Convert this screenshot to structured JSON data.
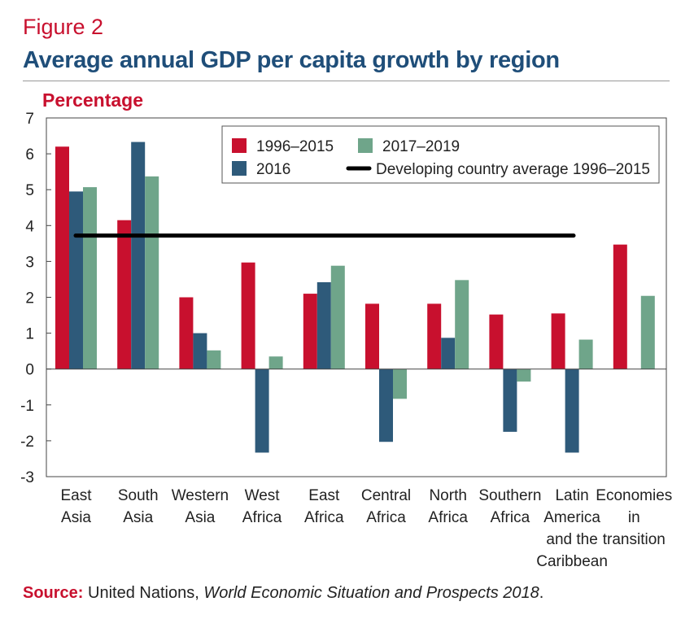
{
  "header": {
    "figure_label": "Figure 2",
    "title": "Average annual GDP per capita growth by region"
  },
  "source": {
    "label": "Source:",
    "text_before": " United Nations, ",
    "title": "World Economic Situation and Prospects 2018",
    "text_after": "."
  },
  "colors": {
    "series_1996_2015": "#c8102e",
    "series_2016": "#2e5a7a",
    "series_2017_2019": "#6fa58a",
    "average_line": "#000000",
    "title": "#1f4e79",
    "accent_red": "#c8102e"
  },
  "chart_data": {
    "type": "bar",
    "title": "Average annual GDP per capita growth by region",
    "ylabel": "Percentage",
    "xlabel": "",
    "ylim": [
      -3,
      7
    ],
    "yticks": [
      "7",
      "6",
      "5",
      "4",
      "3",
      "2",
      "1",
      "0",
      "-1",
      "-2",
      "-3"
    ],
    "grid": false,
    "legend_position": "top-right",
    "categories": [
      [
        "East",
        "Asia"
      ],
      [
        "South",
        "Asia"
      ],
      [
        "Western",
        "Asia"
      ],
      [
        "West",
        "Africa"
      ],
      [
        "East",
        "Africa"
      ],
      [
        "Central",
        "Africa"
      ],
      [
        "North",
        "Africa"
      ],
      [
        "Southern",
        "Africa"
      ],
      [
        "Latin",
        "America",
        "and the",
        "Caribbean"
      ],
      [
        "Economies",
        "in",
        "transition"
      ]
    ],
    "series": [
      {
        "name": "1996–2015",
        "color": "#c8102e",
        "values": [
          6.2,
          4.15,
          2.0,
          2.97,
          2.1,
          1.82,
          1.82,
          1.52,
          1.55,
          3.47
        ]
      },
      {
        "name": "2016",
        "color": "#2e5a7a",
        "values": [
          4.95,
          6.33,
          1.0,
          -2.33,
          2.42,
          -2.03,
          0.87,
          -1.75,
          -2.33,
          null
        ]
      },
      {
        "name": "2017–2019",
        "color": "#6fa58a",
        "values": [
          5.07,
          5.37,
          0.52,
          0.35,
          2.88,
          -0.83,
          2.48,
          -0.35,
          0.82,
          2.04
        ]
      }
    ],
    "reference_line": {
      "name": "Developing country average 1996–2015",
      "value": 3.72,
      "color": "#000000"
    },
    "legend_entries": [
      {
        "label": "1996–2015",
        "color": "#c8102e",
        "kind": "swatch"
      },
      {
        "label": "2017–2019",
        "color": "#6fa58a",
        "kind": "swatch"
      },
      {
        "label": "2016",
        "color": "#2e5a7a",
        "kind": "swatch"
      },
      {
        "label": "Developing country average 1996–2015",
        "color": "#000000",
        "kind": "line"
      }
    ]
  }
}
